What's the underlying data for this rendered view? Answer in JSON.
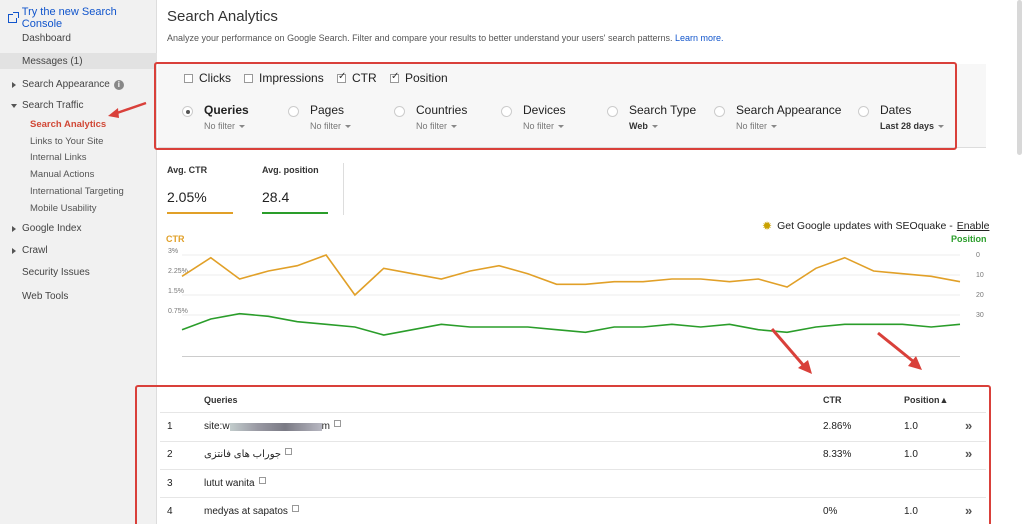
{
  "sidebar": {
    "top_link": "Try the new Search Console",
    "items": {
      "dashboard": "Dashboard",
      "messages": "Messages (1)",
      "search_appearance": "Search Appearance",
      "search_traffic": "Search Traffic",
      "google_index": "Google Index",
      "crawl": "Crawl",
      "security_issues": "Security Issues",
      "web_tools": "Web Tools"
    },
    "search_traffic_sub": [
      "Search Analytics",
      "Links to Your Site",
      "Internal Links",
      "Manual Actions",
      "International Targeting",
      "Mobile Usability"
    ]
  },
  "header": {
    "title": "Search Analytics",
    "subtitle": "Analyze your performance on Google Search. Filter and compare your results to better understand your users' search patterns.",
    "learn_more": "Learn more."
  },
  "metrics_checkboxes": [
    {
      "label": "Clicks",
      "checked": false
    },
    {
      "label": "Impressions",
      "checked": false
    },
    {
      "label": "CTR",
      "checked": true
    },
    {
      "label": "Position",
      "checked": true
    }
  ],
  "groupings": [
    {
      "label": "Queries",
      "value": "No filter",
      "selected": true
    },
    {
      "label": "Pages",
      "value": "No filter",
      "selected": false
    },
    {
      "label": "Countries",
      "value": "No filter",
      "selected": false
    },
    {
      "label": "Devices",
      "value": "No filter",
      "selected": false
    },
    {
      "label": "Search Type",
      "value": "Web",
      "selected": false
    },
    {
      "label": "Search Appearance",
      "value": "No filter",
      "selected": false
    },
    {
      "label": "Dates",
      "value": "Last 28 days",
      "selected": false
    }
  ],
  "summary": {
    "ctr": {
      "label": "Avg. CTR",
      "value": "2.05%",
      "color": "#e1a028"
    },
    "position": {
      "label": "Avg. position",
      "value": "28.4",
      "color": "#2a9d2a"
    }
  },
  "seoquake": {
    "text": "Get Google updates with SEOquake -",
    "link": "Enable"
  },
  "chart_data": {
    "type": "line",
    "left_axis_label": "CTR",
    "right_axis_label": "Position",
    "left_ticks": [
      "3%",
      "2.25%",
      "1.5%",
      "0.75%"
    ],
    "right_ticks": [
      "0",
      "10",
      "20",
      "30"
    ],
    "left_range": [
      0,
      3
    ],
    "right_range": [
      0,
      30
    ],
    "right_inverted": true,
    "series": [
      {
        "name": "CTR",
        "axis": "left",
        "color": "#e1a028",
        "values": [
          2.2,
          2.9,
          2.1,
          2.4,
          2.6,
          3.0,
          1.5,
          2.5,
          2.3,
          2.1,
          2.4,
          2.6,
          2.3,
          1.9,
          1.9,
          2.0,
          2.0,
          2.1,
          2.1,
          2.0,
          2.1,
          1.8,
          2.5,
          2.9,
          2.4,
          2.3,
          2.2,
          2.0
        ]
      },
      {
        "name": "Position",
        "axis": "right",
        "color": "#2a9d2a",
        "values": [
          28,
          24,
          22,
          23,
          25,
          26,
          27,
          30,
          28,
          26,
          27,
          27,
          27,
          28,
          29,
          27,
          27,
          26,
          27,
          26,
          28,
          29,
          27,
          26,
          26,
          26,
          27,
          26
        ]
      }
    ]
  },
  "table": {
    "headers": {
      "queries": "Queries",
      "ctr": "CTR",
      "position": "Position▲"
    },
    "rows": [
      {
        "num": "1",
        "query": "site:w",
        "ctr": "2.86%",
        "position": "1.0"
      },
      {
        "num": "2",
        "query": "جوراب های فانتزی",
        "ctr": "8.33%",
        "position": "1.0"
      },
      {
        "num": "3",
        "query": "lutut wanita",
        "ctr": "",
        "position": ""
      },
      {
        "num": "4",
        "query": "medyas at sapatos",
        "ctr": "0%",
        "position": "1.0"
      }
    ]
  }
}
